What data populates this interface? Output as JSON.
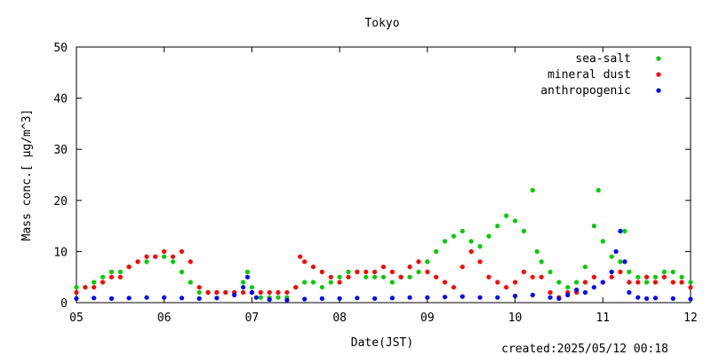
{
  "chart_data": {
    "type": "scatter",
    "title": "Tokyo",
    "xlabel": "Date(JST)",
    "ylabel": "Mass conc.[ μg/m^3]",
    "xlim": [
      "05",
      "12"
    ],
    "ylim": [
      0,
      50
    ],
    "x_ticks": [
      "05",
      "06",
      "07",
      "08",
      "09",
      "10",
      "11",
      "12"
    ],
    "y_ticks": [
      0,
      10,
      20,
      30,
      40,
      50
    ],
    "grid": false,
    "legend_position": "top-right",
    "series": [
      {
        "name": "sea-salt",
        "color": "#00cc00",
        "x": [
          5.0,
          5.1,
          5.2,
          5.3,
          5.4,
          5.5,
          5.6,
          5.7,
          5.8,
          5.9,
          6.0,
          6.1,
          6.2,
          6.3,
          6.4,
          6.5,
          6.6,
          6.7,
          6.8,
          6.9,
          6.95,
          7.0,
          7.1,
          7.2,
          7.3,
          7.4,
          7.5,
          7.6,
          7.7,
          7.8,
          7.9,
          8.0,
          8.1,
          8.2,
          8.3,
          8.4,
          8.5,
          8.6,
          8.7,
          8.8,
          8.9,
          9.0,
          9.1,
          9.2,
          9.3,
          9.4,
          9.5,
          9.6,
          9.7,
          9.8,
          9.9,
          10.0,
          10.1,
          10.2,
          10.25,
          10.3,
          10.4,
          10.5,
          10.6,
          10.7,
          10.8,
          10.9,
          10.95,
          11.0,
          11.1,
          11.2,
          11.25,
          11.3,
          11.4,
          11.5,
          11.6,
          11.7,
          11.8,
          11.9,
          12.0
        ],
        "y": [
          3,
          3,
          4,
          5,
          6,
          6,
          7,
          8,
          8,
          9,
          9,
          8,
          6,
          4,
          2,
          2,
          2,
          2,
          2,
          4,
          6,
          3,
          1,
          1,
          1,
          1,
          3,
          4,
          4,
          3,
          4,
          5,
          6,
          6,
          5,
          5,
          5,
          4,
          5,
          5,
          6,
          8,
          10,
          12,
          13,
          14,
          12,
          11,
          13,
          15,
          17,
          16,
          14,
          22,
          10,
          8,
          6,
          4,
          3,
          4,
          7,
          15,
          22,
          12,
          9,
          8,
          14,
          6,
          5,
          4,
          5,
          6,
          6,
          5,
          4
        ]
      },
      {
        "name": "mineral dust",
        "color": "#ff0000",
        "x": [
          5.0,
          5.1,
          5.2,
          5.3,
          5.4,
          5.5,
          5.6,
          5.7,
          5.8,
          5.9,
          6.0,
          6.1,
          6.2,
          6.3,
          6.4,
          6.5,
          6.6,
          6.7,
          6.8,
          6.9,
          7.0,
          7.1,
          7.2,
          7.3,
          7.4,
          7.5,
          7.55,
          7.6,
          7.7,
          7.8,
          7.9,
          8.0,
          8.1,
          8.2,
          8.3,
          8.4,
          8.5,
          8.6,
          8.7,
          8.8,
          8.9,
          9.0,
          9.1,
          9.2,
          9.3,
          9.4,
          9.5,
          9.6,
          9.7,
          9.8,
          9.9,
          10.0,
          10.1,
          10.2,
          10.3,
          10.4,
          10.5,
          10.6,
          10.7,
          10.8,
          10.9,
          11.0,
          11.1,
          11.2,
          11.3,
          11.4,
          11.5,
          11.6,
          11.7,
          11.8,
          11.9,
          12.0
        ],
        "y": [
          2,
          3,
          3,
          4,
          5,
          5,
          7,
          8,
          9,
          9,
          10,
          9,
          10,
          8,
          3,
          2,
          2,
          2,
          2,
          2,
          2,
          2,
          2,
          2,
          2,
          3,
          9,
          8,
          7,
          6,
          5,
          4,
          5,
          6,
          6,
          6,
          7,
          6,
          5,
          7,
          8,
          6,
          5,
          4,
          3,
          7,
          10,
          8,
          5,
          4,
          3,
          4,
          6,
          5,
          5,
          2,
          1,
          2,
          2,
          4,
          5,
          4,
          5,
          6,
          4,
          4,
          5,
          4,
          5,
          4,
          4,
          3
        ]
      },
      {
        "name": "anthropogenic",
        "color": "#0000ff",
        "x": [
          5.0,
          5.2,
          5.4,
          5.6,
          5.8,
          6.0,
          6.2,
          6.4,
          6.6,
          6.8,
          6.9,
          6.95,
          7.0,
          7.05,
          7.2,
          7.4,
          7.6,
          7.8,
          8.0,
          8.2,
          8.4,
          8.6,
          8.8,
          9.0,
          9.2,
          9.4,
          9.6,
          9.8,
          10.0,
          10.2,
          10.4,
          10.5,
          10.6,
          10.7,
          10.8,
          10.9,
          11.0,
          11.1,
          11.15,
          11.2,
          11.25,
          11.3,
          11.4,
          11.5,
          11.6,
          11.8,
          12.0
        ],
        "y": [
          0.8,
          0.9,
          0.8,
          0.9,
          1.0,
          1.0,
          0.9,
          0.8,
          0.9,
          1.5,
          3,
          5,
          2,
          1,
          0.6,
          0.5,
          0.7,
          0.8,
          0.8,
          0.9,
          0.8,
          0.9,
          1.0,
          1.0,
          1.1,
          1.2,
          1.0,
          1.0,
          1.3,
          1.5,
          1.0,
          0.8,
          1.5,
          2.5,
          2.0,
          3,
          4,
          6,
          10,
          14,
          8,
          2,
          1,
          0.8,
          0.9,
          0.8,
          0.7
        ]
      }
    ]
  },
  "footer": {
    "created": "created:2025/05/12 00:18"
  }
}
